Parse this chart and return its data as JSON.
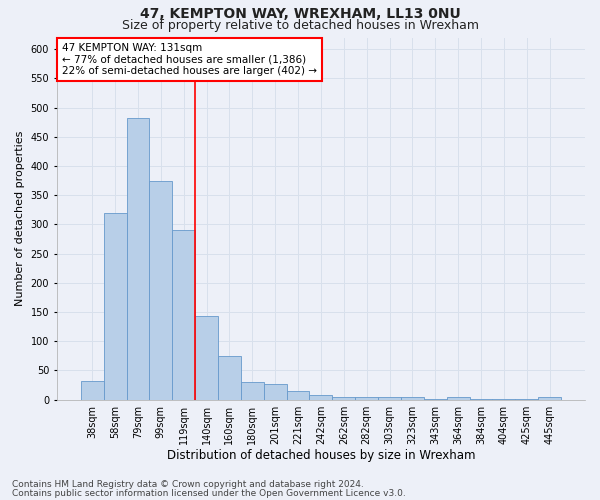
{
  "title1": "47, KEMPTON WAY, WREXHAM, LL13 0NU",
  "title2": "Size of property relative to detached houses in Wrexham",
  "xlabel": "Distribution of detached houses by size in Wrexham",
  "ylabel": "Number of detached properties",
  "categories": [
    "38sqm",
    "58sqm",
    "79sqm",
    "99sqm",
    "119sqm",
    "140sqm",
    "160sqm",
    "180sqm",
    "201sqm",
    "221sqm",
    "242sqm",
    "262sqm",
    "282sqm",
    "303sqm",
    "323sqm",
    "343sqm",
    "364sqm",
    "384sqm",
    "404sqm",
    "425sqm",
    "445sqm"
  ],
  "values": [
    32,
    320,
    483,
    374,
    290,
    143,
    75,
    30,
    27,
    15,
    8,
    5,
    4,
    4,
    4,
    1,
    4,
    1,
    1,
    1,
    5
  ],
  "bar_color": "#b8cfe8",
  "bar_edge_color": "#6699cc",
  "grid_color": "#d8e0ec",
  "background_color": "#edf0f8",
  "vline_color": "red",
  "vline_x_index": 4.5,
  "annotation_line1": "47 KEMPTON WAY: 131sqm",
  "annotation_line2": "← 77% of detached houses are smaller (1,386)",
  "annotation_line3": "22% of semi-detached houses are larger (402) →",
  "annotation_box_color": "white",
  "annotation_box_edge": "red",
  "ylim": [
    0,
    620
  ],
  "yticks": [
    0,
    50,
    100,
    150,
    200,
    250,
    300,
    350,
    400,
    450,
    500,
    550,
    600
  ],
  "footer1": "Contains HM Land Registry data © Crown copyright and database right 2024.",
  "footer2": "Contains public sector information licensed under the Open Government Licence v3.0.",
  "title1_fontsize": 10,
  "title2_fontsize": 9,
  "xlabel_fontsize": 8.5,
  "ylabel_fontsize": 8,
  "tick_fontsize": 7,
  "annotation_fontsize": 7.5,
  "footer_fontsize": 6.5
}
